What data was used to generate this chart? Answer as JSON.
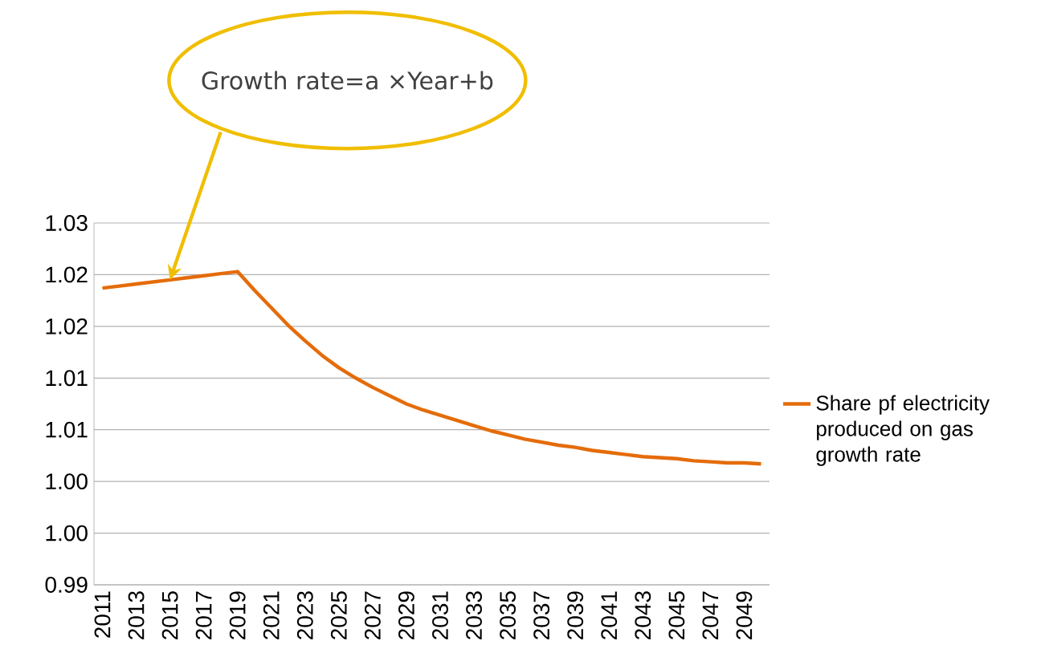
{
  "chart_data": {
    "type": "line",
    "categories": [
      "2011",
      null,
      "2013",
      null,
      "2015",
      null,
      "2017",
      null,
      "2019",
      null,
      "2021",
      null,
      "2023",
      null,
      "2025",
      null,
      "2027",
      null,
      "2029",
      null,
      "2031",
      null,
      "2033",
      null,
      "2035",
      null,
      "2037",
      null,
      "2039",
      null,
      "2041",
      null,
      "2043",
      null,
      "2045",
      null,
      "2047",
      null,
      "2049",
      null
    ],
    "series": [
      {
        "name": "Share pf electricity produced on gas growth rate",
        "color": "#e46c0a",
        "values": [
          1.0237,
          1.0239,
          1.0241,
          1.0243,
          1.0245,
          1.0247,
          1.0249,
          1.0251,
          1.0253,
          1.0235,
          1.0218,
          1.0201,
          1.0186,
          1.0172,
          1.016,
          1.015,
          1.0141,
          1.0133,
          1.0125,
          1.0119,
          1.0114,
          1.0109,
          1.0104,
          1.0099,
          1.0095,
          1.0091,
          1.0088,
          1.0085,
          1.0083,
          1.008,
          1.0078,
          1.0076,
          1.0074,
          1.0073,
          1.0072,
          1.007,
          1.0069,
          1.0068,
          1.0068,
          1.0067
        ]
      }
    ],
    "ylim": [
      0.995,
      1.03
    ],
    "yticks": [
      {
        "value": 0.995,
        "label": "0.99"
      },
      {
        "value": 1.0,
        "label": "1.00"
      },
      {
        "value": 1.005,
        "label": "1.00"
      },
      {
        "value": 1.01,
        "label": "1.01"
      },
      {
        "value": 1.015,
        "label": "1.01"
      },
      {
        "value": 1.02,
        "label": "1.02"
      },
      {
        "value": 1.025,
        "label": "1.02"
      },
      {
        "value": 1.03,
        "label": "1.03"
      }
    ],
    "grid": "y",
    "legend": "right",
    "marker": "none",
    "line_style": "solid",
    "annotations": [
      "Growth rate=a ×Year+b"
    ]
  }
}
